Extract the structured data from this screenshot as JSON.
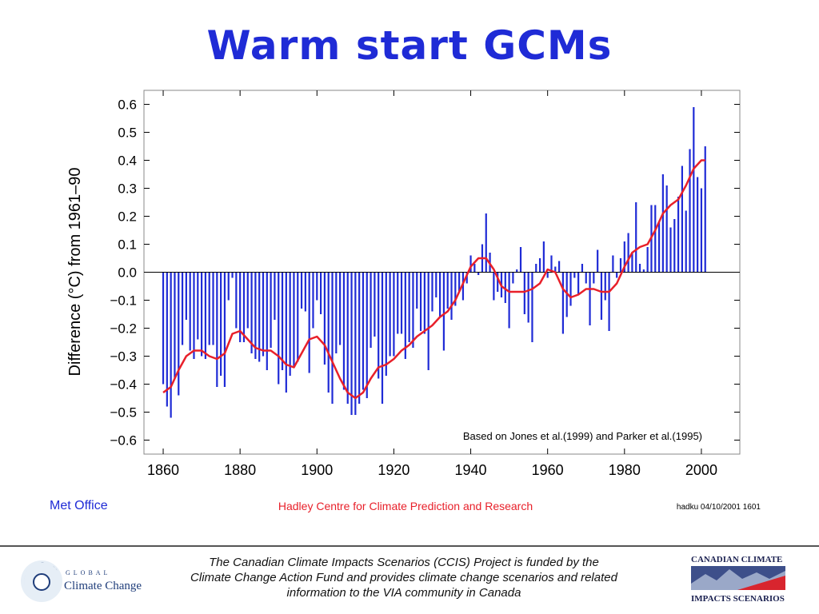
{
  "slide": {
    "title": "Warm start GCMs"
  },
  "chart_data": {
    "type": "bar",
    "ylabel": "Difference (°C) from 1961–90",
    "xlim": [
      1855,
      2010
    ],
    "ylim": [
      -0.65,
      0.65
    ],
    "x_ticks": [
      1860,
      1880,
      1900,
      1920,
      1940,
      1960,
      1980,
      2000
    ],
    "y_ticks": [
      0.6,
      0.5,
      0.4,
      0.3,
      0.2,
      0.1,
      0.0,
      -0.1,
      -0.2,
      -0.3,
      -0.4,
      -0.5,
      -0.6
    ],
    "y_tick_labels": [
      "0.6",
      "0.5",
      "0.4",
      "0.3",
      "0.2",
      "0.1",
      "0.0",
      "−0.1",
      "−0.2",
      "−0.3",
      "−0.4",
      "−0.5",
      "−0.6"
    ],
    "grid": false,
    "annotation": "Based on Jones et al.(1999) and Parker et al.(1995)",
    "series": [
      {
        "type": "bar",
        "color": "#1f2bd6",
        "x": [
          1860,
          1861,
          1862,
          1863,
          1864,
          1865,
          1866,
          1867,
          1868,
          1869,
          1870,
          1871,
          1872,
          1873,
          1874,
          1875,
          1876,
          1877,
          1878,
          1879,
          1880,
          1881,
          1882,
          1883,
          1884,
          1885,
          1886,
          1887,
          1888,
          1889,
          1890,
          1891,
          1892,
          1893,
          1894,
          1895,
          1896,
          1897,
          1898,
          1899,
          1900,
          1901,
          1902,
          1903,
          1904,
          1905,
          1906,
          1907,
          1908,
          1909,
          1910,
          1911,
          1912,
          1913,
          1914,
          1915,
          1916,
          1917,
          1918,
          1919,
          1920,
          1921,
          1922,
          1923,
          1924,
          1925,
          1926,
          1927,
          1928,
          1929,
          1930,
          1931,
          1932,
          1933,
          1934,
          1935,
          1936,
          1937,
          1938,
          1939,
          1940,
          1941,
          1942,
          1943,
          1944,
          1945,
          1946,
          1947,
          1948,
          1949,
          1950,
          1951,
          1952,
          1953,
          1954,
          1955,
          1956,
          1957,
          1958,
          1959,
          1960,
          1961,
          1962,
          1963,
          1964,
          1965,
          1966,
          1967,
          1968,
          1969,
          1970,
          1971,
          1972,
          1973,
          1974,
          1975,
          1976,
          1977,
          1978,
          1979,
          1980,
          1981,
          1982,
          1983,
          1984,
          1985,
          1986,
          1987,
          1988,
          1989,
          1990,
          1991,
          1992,
          1993,
          1994,
          1995,
          1996,
          1997,
          1998,
          1999,
          2000,
          2001
        ],
        "values": [
          -0.4,
          -0.48,
          -0.52,
          -0.38,
          -0.44,
          -0.26,
          -0.17,
          -0.28,
          -0.31,
          -0.24,
          -0.3,
          -0.31,
          -0.26,
          -0.26,
          -0.41,
          -0.37,
          -0.41,
          -0.1,
          -0.02,
          -0.2,
          -0.25,
          -0.25,
          -0.2,
          -0.29,
          -0.31,
          -0.32,
          -0.3,
          -0.35,
          -0.27,
          -0.17,
          -0.4,
          -0.35,
          -0.43,
          -0.37,
          -0.34,
          -0.32,
          -0.13,
          -0.14,
          -0.36,
          -0.2,
          -0.1,
          -0.15,
          -0.33,
          -0.43,
          -0.47,
          -0.29,
          -0.26,
          -0.42,
          -0.47,
          -0.51,
          -0.51,
          -0.47,
          -0.42,
          -0.45,
          -0.27,
          -0.23,
          -0.38,
          -0.47,
          -0.37,
          -0.3,
          -0.3,
          -0.22,
          -0.22,
          -0.31,
          -0.25,
          -0.27,
          -0.13,
          -0.21,
          -0.22,
          -0.35,
          -0.14,
          -0.09,
          -0.16,
          -0.28,
          -0.13,
          -0.17,
          -0.12,
          -0.07,
          -0.1,
          -0.04,
          0.06,
          0.03,
          -0.01,
          0.1,
          0.21,
          0.07,
          -0.1,
          -0.07,
          -0.09,
          -0.11,
          -0.2,
          -0.04,
          0.01,
          0.09,
          -0.15,
          -0.18,
          -0.25,
          0.03,
          0.05,
          0.11,
          -0.02,
          0.06,
          0.02,
          0.04,
          -0.22,
          -0.16,
          -0.12,
          -0.02,
          -0.08,
          0.03,
          -0.04,
          -0.19,
          -0.04,
          0.08,
          -0.17,
          -0.1,
          -0.21,
          0.06,
          -0.02,
          0.05,
          0.11,
          0.14,
          0.07,
          0.25,
          0.03,
          0.01,
          0.09,
          0.24,
          0.24,
          0.18,
          0.35,
          0.31,
          0.16,
          0.19,
          0.27,
          0.38,
          0.22,
          0.44,
          0.59,
          0.34,
          0.3,
          0.45
        ]
      },
      {
        "type": "line",
        "color": "#e8202a",
        "x": [
          1860,
          1862,
          1864,
          1866,
          1868,
          1870,
          1872,
          1874,
          1876,
          1878,
          1880,
          1882,
          1884,
          1886,
          1888,
          1890,
          1892,
          1894,
          1896,
          1898,
          1900,
          1902,
          1904,
          1906,
          1908,
          1910,
          1912,
          1914,
          1916,
          1918,
          1920,
          1922,
          1924,
          1926,
          1928,
          1930,
          1932,
          1934,
          1936,
          1938,
          1940,
          1942,
          1944,
          1946,
          1948,
          1950,
          1952,
          1954,
          1956,
          1958,
          1960,
          1962,
          1964,
          1966,
          1968,
          1970,
          1972,
          1974,
          1976,
          1978,
          1980,
          1982,
          1984,
          1986,
          1988,
          1990,
          1992,
          1994,
          1996,
          1998,
          2000,
          2001
        ],
        "values": [
          -0.43,
          -0.41,
          -0.35,
          -0.3,
          -0.28,
          -0.28,
          -0.3,
          -0.31,
          -0.29,
          -0.22,
          -0.21,
          -0.24,
          -0.27,
          -0.28,
          -0.28,
          -0.3,
          -0.33,
          -0.34,
          -0.29,
          -0.24,
          -0.23,
          -0.26,
          -0.32,
          -0.38,
          -0.43,
          -0.45,
          -0.43,
          -0.38,
          -0.34,
          -0.33,
          -0.31,
          -0.28,
          -0.26,
          -0.23,
          -0.21,
          -0.19,
          -0.16,
          -0.14,
          -0.1,
          -0.04,
          0.02,
          0.05,
          0.05,
          0.01,
          -0.05,
          -0.07,
          -0.07,
          -0.07,
          -0.06,
          -0.04,
          0.01,
          0.0,
          -0.06,
          -0.09,
          -0.08,
          -0.06,
          -0.06,
          -0.07,
          -0.07,
          -0.04,
          0.02,
          0.07,
          0.09,
          0.1,
          0.15,
          0.21,
          0.24,
          0.26,
          0.31,
          0.37,
          0.4,
          0.4
        ]
      }
    ]
  },
  "footer": {
    "met_office": "Met Office",
    "hadley": "Hadley Centre for Climate Prediction and Research",
    "stamp": "hadku  04/10/2001 1601",
    "funding_line1": "The Canadian Climate Impacts Scenarios (CCIS) Project is funded by the",
    "funding_line2": "Climate Change Action Fund and provides climate change scenarios and related",
    "funding_line3": "information to the VIA community in Canada",
    "logo_left_line1": "GLOBAL",
    "logo_left_line2": "Climate Change",
    "logo_right_line1": "CANADIAN CLIMATE",
    "logo_right_line2": "IMPACTS SCENARIOS"
  },
  "colors": {
    "title": "#1f2bd6",
    "bars": "#1f2bd6",
    "smooth_line": "#e8202a",
    "hadley_text": "#e8202a",
    "met_office_text": "#1f2bd6"
  }
}
